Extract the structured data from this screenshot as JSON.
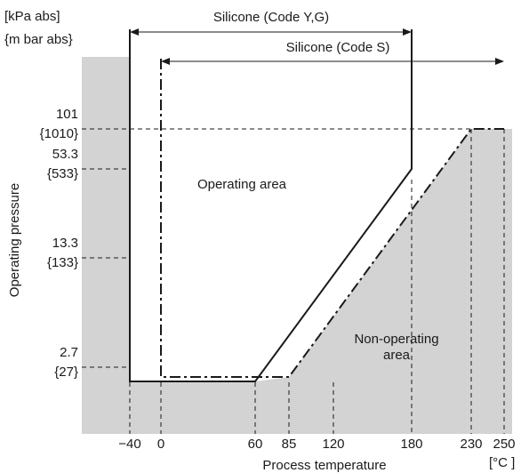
{
  "chart_data": {
    "type": "area",
    "xlabel": "Process temperature",
    "ylabel": "Operating pressure",
    "x_unit": "[°C ]",
    "y_unit_kpa": "[kPa  abs]",
    "y_unit_mbar": "{m bar abs}",
    "xlim": [
      -70,
      255
    ],
    "x_ticks": [
      {
        "value": -40,
        "label": "−40"
      },
      {
        "value": 0,
        "label": "0"
      },
      {
        "value": 60,
        "label": "60"
      },
      {
        "value": 85,
        "label": "85"
      },
      {
        "value": 120,
        "label": "120"
      },
      {
        "value": 180,
        "label": "180"
      },
      {
        "value": 230,
        "label": "230"
      },
      {
        "value": 250,
        "label": "250"
      }
    ],
    "y_ticks": [
      {
        "value": 101,
        "kpa": "101",
        "mbar": "{1010}"
      },
      {
        "value": 53.3,
        "kpa": "53.3",
        "mbar": "{533}"
      },
      {
        "value": 13.3,
        "kpa": "13.3",
        "mbar": "{133}"
      },
      {
        "value": 2.7,
        "kpa": "2.7",
        "mbar": "{27}"
      }
    ],
    "series": [
      {
        "name": "Silicone (Code Y,G)",
        "style": "solid",
        "points": [
          [
            -40,
            1010
          ],
          [
            -40,
            2.0
          ],
          [
            60,
            2.0
          ],
          [
            180,
            53.3
          ],
          [
            180,
            1010
          ]
        ]
      },
      {
        "name": "Silicone (Code S)",
        "style": "dash-dot",
        "points": [
          [
            0,
            700
          ],
          [
            0,
            2.15
          ],
          [
            85,
            2.15
          ],
          [
            230,
            101
          ],
          [
            250,
            101
          ]
        ]
      }
    ],
    "annotations": {
      "operating": "Operating area",
      "non_operating_1": "Non-operating",
      "non_operating_2": "area"
    },
    "colors": {
      "shade": "#d3d3d3",
      "line": "#1a1a1a"
    }
  }
}
